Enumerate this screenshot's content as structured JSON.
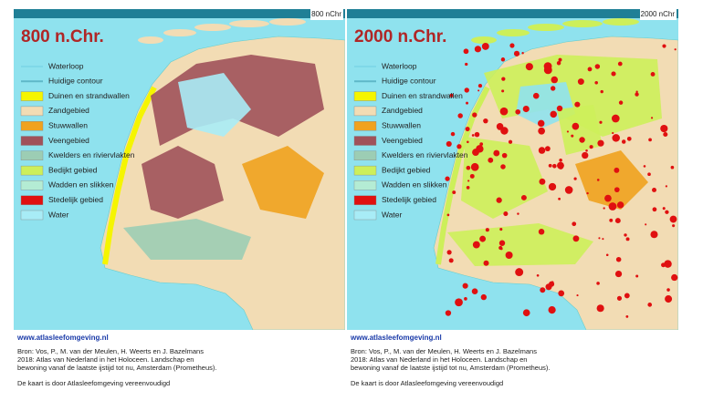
{
  "panels": [
    {
      "corner_label": "800 nChr",
      "title": "800 n.Chr.",
      "legend": [
        {
          "label": "Waterloop",
          "color": "#7fd8e8"
        },
        {
          "label": "Huidige contour",
          "color": "#5fb8c8"
        },
        {
          "label": "Duinen en strandwallen",
          "color": "#f5f500"
        },
        {
          "label": "Zandgebied",
          "color": "#f2dcb4"
        },
        {
          "label": "Stuwwallen",
          "color": "#f0a21e"
        },
        {
          "label": "Veengebied",
          "color": "#a0525a"
        },
        {
          "label": "Kwelders en riviervlakten",
          "color": "#9ccdb4"
        },
        {
          "label": "Bedijkt gebied",
          "color": "#cdef5a"
        },
        {
          "label": "Wadden en slikken",
          "color": "#b4ecd4"
        },
        {
          "label": "Stedelijk gebied",
          "color": "#e01010"
        },
        {
          "label": "Water",
          "color": "#a8ecf6"
        }
      ],
      "website": "www.atlasleefomgeving.nl",
      "source": [
        "Bron: Vos, P., M. van der Meulen, H. Weerts en J. Bazelmans",
        "2018: Atlas van Nederland in het Holoceen. Landschap en",
        "bewoning vanaf de laatste ijstijd tot nu, Amsterdam (Prometheus)."
      ],
      "note": "De kaart is door Atlasleefomgeving vereenvoudigd"
    },
    {
      "corner_label": "2000 nChr",
      "title": "2000 n.Chr.",
      "legend": [
        {
          "label": "Waterloop",
          "color": "#7fd8e8"
        },
        {
          "label": "Huidige contour",
          "color": "#5fb8c8"
        },
        {
          "label": "Duinen en strandwallen",
          "color": "#f5f500"
        },
        {
          "label": "Zandgebied",
          "color": "#f2dcb4"
        },
        {
          "label": "Stuwwallen",
          "color": "#f0a21e"
        },
        {
          "label": "Veengebied",
          "color": "#a0525a"
        },
        {
          "label": "Kwelders en riviervlakten",
          "color": "#9ccdb4"
        },
        {
          "label": "Bedijkt gebied",
          "color": "#cdef5a"
        },
        {
          "label": "Wadden en slikken",
          "color": "#b4ecd4"
        },
        {
          "label": "Stedelijk gebied",
          "color": "#e01010"
        },
        {
          "label": "Water",
          "color": "#a8ecf6"
        }
      ],
      "website": "www.atlasleefomgeving.nl",
      "source": [
        "Bron: Vos, P., M. van der Meulen, H. Weerts en J. Bazelmans",
        "2018: Atlas van Nederland in het Holoceen. Landschap en",
        "bewoning vanaf de laatste ijstijd tot nu, Amsterdam (Prometheus)."
      ],
      "note": "De kaart is door Atlasleefomgeving vereenvoudigd"
    }
  ]
}
